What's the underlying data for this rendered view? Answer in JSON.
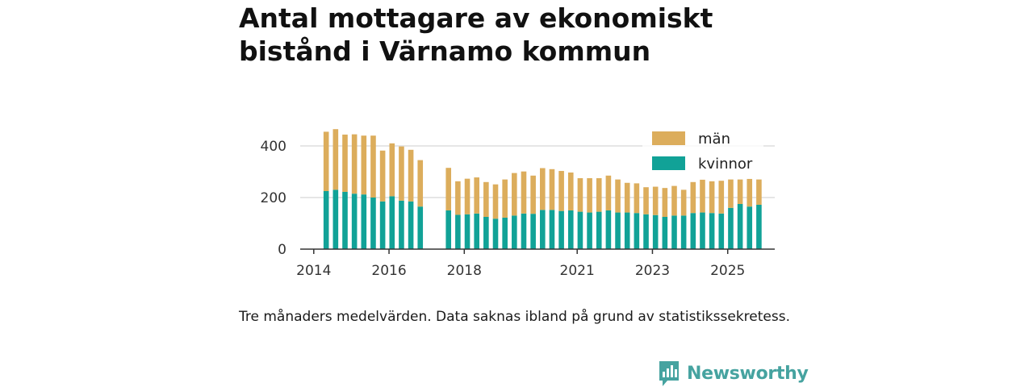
{
  "title": "Antal mottagare av ekonomiskt bistånd i Värnamo kommun",
  "caption": "Tre månaders medelvärden. Data saknas ibland på grund av statistikssekretess.",
  "brand": {
    "name": "Newsworthy"
  },
  "colors": {
    "kvinnor": "#11a297",
    "man": "#dcad5c",
    "grid": "#dddddd",
    "axis": "#333333",
    "brand": "#46a3a0"
  },
  "chart_data": {
    "type": "bar",
    "stacked": true,
    "title": "Antal mottagare av ekonomiskt bistånd i Värnamo kommun",
    "xlabel": "",
    "ylabel": "",
    "ylim": [
      0,
      450
    ],
    "yticks": [
      0,
      200,
      400
    ],
    "ytick_labels": [
      "0",
      "200",
      "400"
    ],
    "xlim": [
      2013.64,
      2026.25
    ],
    "xticks": [
      2014,
      2016,
      2018,
      2021,
      2023,
      2025
    ],
    "xtick_labels": [
      "2014",
      "2016",
      "2018",
      "2021",
      "2023",
      "2025"
    ],
    "legend_position": "top-right",
    "x": [
      2014.33,
      2014.58,
      2014.83,
      2015.08,
      2015.33,
      2015.58,
      2015.83,
      2016.08,
      2016.33,
      2016.58,
      2016.83,
      2017.58,
      2017.83,
      2018.08,
      2018.33,
      2018.58,
      2018.83,
      2019.08,
      2019.33,
      2019.58,
      2019.83,
      2020.08,
      2020.33,
      2020.58,
      2020.83,
      2021.08,
      2021.33,
      2021.58,
      2021.83,
      2022.08,
      2022.33,
      2022.58,
      2022.83,
      2023.08,
      2023.33,
      2023.58,
      2023.83,
      2024.08,
      2024.33,
      2024.58,
      2024.83,
      2025.08,
      2025.33,
      2025.58,
      2025.83
    ],
    "series": [
      {
        "name": "kvinnor",
        "values": [
          225,
          230,
          222,
          215,
          212,
          200,
          185,
          205,
          188,
          185,
          165,
          150,
          133,
          135,
          138,
          125,
          118,
          122,
          130,
          138,
          137,
          152,
          152,
          148,
          150,
          145,
          142,
          145,
          150,
          142,
          142,
          140,
          135,
          132,
          125,
          130,
          130,
          140,
          142,
          140,
          138,
          160,
          175,
          165,
          172
        ]
      },
      {
        "name": "män",
        "values": [
          230,
          235,
          222,
          230,
          228,
          240,
          197,
          205,
          210,
          200,
          180,
          165,
          130,
          138,
          140,
          135,
          133,
          148,
          165,
          163,
          148,
          162,
          158,
          155,
          147,
          130,
          133,
          130,
          135,
          128,
          115,
          115,
          105,
          110,
          112,
          115,
          100,
          120,
          127,
          123,
          127,
          110,
          95,
          108,
          98
        ]
      }
    ],
    "legend": [
      "män",
      "kvinnor"
    ]
  }
}
